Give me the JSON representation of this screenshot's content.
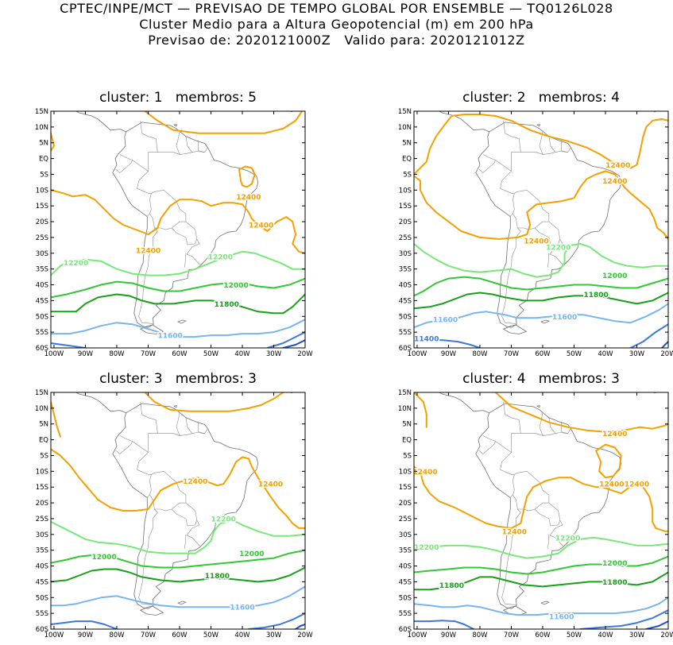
{
  "header": {
    "line1": "CPTEC/INPE/MCT — PREVISAO DE TEMPO GLOBAL POR ENSEMBLE — TQ0126L028",
    "line2": "Cluster Medio para a Altura Geopotencial (m) em 200 hPa",
    "line3": "Previsao de: 2020121000Z   Valido para: 2020121012Z"
  },
  "axes": {
    "lat_labels": [
      "15N",
      "10N",
      "5N",
      "EQ",
      "5S",
      "10S",
      "15S",
      "20S",
      "25S",
      "30S",
      "35S",
      "40S",
      "45S",
      "50S",
      "55S",
      "60S"
    ],
    "lon_labels": [
      "100W",
      "90W",
      "80W",
      "70W",
      "60W",
      "50W",
      "40W",
      "30W",
      "20W"
    ],
    "lon_range": [
      -101,
      -20
    ],
    "lat_range": [
      -60,
      15
    ]
  },
  "contour_colors": {
    "12400": "#f5a000",
    "12200": "#78e878",
    "12000": "#32c832",
    "11800": "#18a018",
    "11600": "#78b4f0",
    "11400": "#3c78dc",
    "11200": "#1e50c8"
  },
  "panels": [
    {
      "title": "cluster: 1   membros: 5",
      "labels": [
        {
          "text": "12400",
          "lon": -38,
          "lat": -12
        },
        {
          "text": "12400",
          "lon": -34,
          "lat": -21
        },
        {
          "text": "12400",
          "lon": -70,
          "lat": -29
        },
        {
          "text": "12200",
          "lon": -93,
          "lat": -33
        },
        {
          "text": "12200",
          "lon": -47,
          "lat": -31
        },
        {
          "text": "12000",
          "lon": -42,
          "lat": -40
        },
        {
          "text": "11800",
          "lon": -45,
          "lat": -46
        },
        {
          "text": "11600",
          "lon": -63,
          "lat": -56
        }
      ]
    },
    {
      "title": "cluster: 2   membros: 4",
      "labels": [
        {
          "text": "12400",
          "lon": -36,
          "lat": -2
        },
        {
          "text": "12400",
          "lon": -37,
          "lat": -7
        },
        {
          "text": "12400",
          "lon": -62,
          "lat": -26
        },
        {
          "text": "12200",
          "lon": -55,
          "lat": -28
        },
        {
          "text": "12000",
          "lon": -37,
          "lat": -37
        },
        {
          "text": "11800",
          "lon": -43,
          "lat": -43
        },
        {
          "text": "11600",
          "lon": -91,
          "lat": -51
        },
        {
          "text": "11600",
          "lon": -53,
          "lat": -50
        },
        {
          "text": "11400",
          "lon": -97,
          "lat": -57
        }
      ]
    },
    {
      "title": "cluster: 3   membros: 3",
      "labels": [
        {
          "text": "12400",
          "lon": -55,
          "lat": -13
        },
        {
          "text": "12400",
          "lon": -31,
          "lat": -14
        },
        {
          "text": "12200",
          "lon": -46,
          "lat": -25
        },
        {
          "text": "12000",
          "lon": -84,
          "lat": -37
        },
        {
          "text": "12000",
          "lon": -37,
          "lat": -36
        },
        {
          "text": "11800",
          "lon": -48,
          "lat": -43
        },
        {
          "text": "11600",
          "lon": -40,
          "lat": -53
        }
      ]
    },
    {
      "title": "cluster: 4   membros: 3",
      "labels": [
        {
          "text": "12400",
          "lon": -37,
          "lat": 2
        },
        {
          "text": "12400",
          "lon": -100,
          "lat": -10
        },
        {
          "text": "12400",
          "lon": -38,
          "lat": -14
        },
        {
          "text": "12400",
          "lon": -30,
          "lat": -14
        },
        {
          "text": "12400",
          "lon": -69,
          "lat": -29
        },
        {
          "text": "12200",
          "lon": -97,
          "lat": -34
        },
        {
          "text": "12200",
          "lon": -52,
          "lat": -31
        },
        {
          "text": "12000",
          "lon": -37,
          "lat": -39
        },
        {
          "text": "11800",
          "lon": -89,
          "lat": -46
        },
        {
          "text": "11800",
          "lon": -37,
          "lat": -45
        },
        {
          "text": "11600",
          "lon": -54,
          "lat": -56
        }
      ]
    }
  ]
}
